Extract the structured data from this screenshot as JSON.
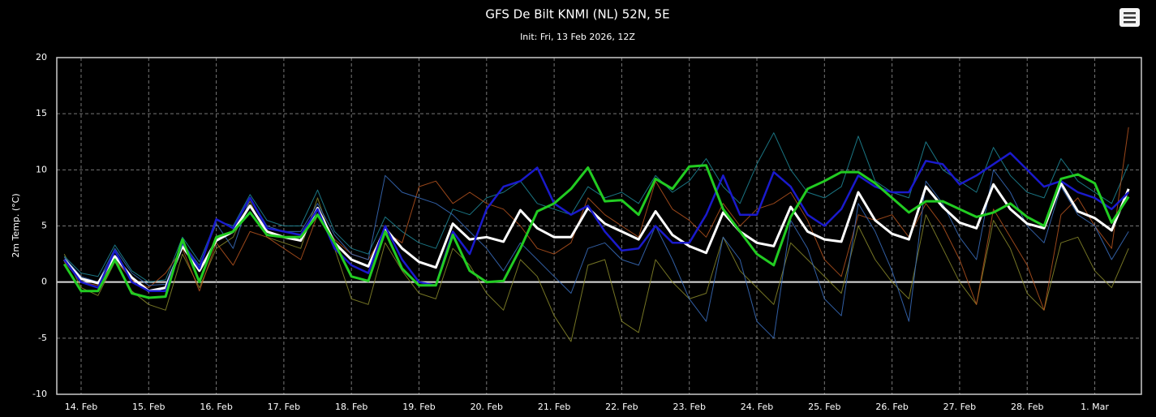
{
  "chart_data": {
    "type": "line",
    "title": "GFS De Bilt KNMI (NL) 52N, 5E",
    "subtitle": "Init: Fri, 13 Feb 2026, 12Z",
    "y_label": "2m Temp. (°C)",
    "grid": true,
    "xlim": [
      13.64,
      29.69
    ],
    "xticks": [
      {
        "value": 14,
        "label": "14. Feb"
      },
      {
        "value": 15,
        "label": "15. Feb"
      },
      {
        "value": 16,
        "label": "16. Feb"
      },
      {
        "value": 17,
        "label": "17. Feb"
      },
      {
        "value": 18,
        "label": "18. Feb"
      },
      {
        "value": 19,
        "label": "19. Feb"
      },
      {
        "value": 20,
        "label": "20. Feb"
      },
      {
        "value": 21,
        "label": "21. Feb"
      },
      {
        "value": 22,
        "label": "22. Feb"
      },
      {
        "value": 23,
        "label": "23. Feb"
      },
      {
        "value": 24,
        "label": "24. Feb"
      },
      {
        "value": 25,
        "label": "25. Feb"
      },
      {
        "value": 26,
        "label": "26. Feb"
      },
      {
        "value": 27,
        "label": "27. Feb"
      },
      {
        "value": 28,
        "label": "28. Feb"
      },
      {
        "value": 29,
        "label": "1. Mar"
      }
    ],
    "ylim": [
      -10,
      20
    ],
    "yticks": [
      -10,
      -5,
      0,
      5,
      10,
      15,
      20
    ],
    "x": [
      13.75,
      14,
      14.25,
      14.5,
      14.75,
      15,
      15.25,
      15.5,
      15.75,
      16,
      16.25,
      16.5,
      16.75,
      17,
      17.25,
      17.5,
      17.75,
      18,
      18.25,
      18.5,
      18.75,
      19,
      19.25,
      19.5,
      19.75,
      20,
      20.25,
      20.5,
      20.75,
      21,
      21.25,
      21.5,
      21.75,
      22,
      22.25,
      22.5,
      22.75,
      23,
      23.25,
      23.5,
      23.75,
      24,
      24.25,
      24.5,
      24.75,
      25,
      25.25,
      25.5,
      25.75,
      26,
      26.25,
      26.5,
      26.75,
      27,
      27.25,
      27.5,
      27.75,
      28,
      28.25,
      28.5,
      28.75,
      29,
      29.25,
      29.5
    ],
    "series": [
      {
        "color": "#8a8a2a",
        "width": 1,
        "values": [
          2.5,
          -0.5,
          -1.2,
          1.8,
          -0.8,
          -2.0,
          -2.5,
          2.5,
          -0.5,
          3.0,
          4.0,
          7.2,
          4.0,
          3.5,
          3.0,
          7.5,
          3.0,
          -1.5,
          -2.0,
          3.5,
          1.0,
          -1.0,
          -1.5,
          3.0,
          1.5,
          -1.0,
          -2.5,
          2.0,
          0.5,
          -3.0,
          -5.3,
          1.5,
          2.0,
          -3.5,
          -4.5,
          2.0,
          0.0,
          -1.5,
          -1.0,
          4.0,
          1.0,
          -0.5,
          -2.0,
          3.5,
          2.0,
          0.5,
          -1.0,
          5.0,
          2.0,
          0.0,
          -1.5,
          6.0,
          3.0,
          0.0,
          -2.0,
          5.5,
          3.0,
          -1.0,
          -2.5,
          3.5,
          4.0,
          1.0,
          -0.5,
          3.0
        ]
      },
      {
        "color": "#1e8a9a",
        "width": 1,
        "values": [
          2.3,
          0.8,
          0.5,
          3.3,
          1.0,
          0.0,
          0.2,
          4.0,
          1.8,
          5.5,
          5.0,
          7.8,
          5.5,
          5.0,
          5.0,
          8.2,
          4.5,
          3.0,
          2.5,
          5.8,
          4.5,
          3.5,
          3.0,
          6.5,
          6.0,
          7.5,
          8.0,
          9.0,
          7.0,
          6.5,
          6.0,
          8.5,
          7.5,
          8.0,
          7.0,
          9.5,
          8.0,
          9.0,
          11.0,
          8.5,
          7.0,
          10.5,
          13.3,
          10.0,
          8.0,
          7.5,
          8.5,
          13.0,
          9.0,
          8.0,
          7.5,
          12.5,
          10.0,
          9.0,
          8.0,
          12.0,
          9.5,
          8.0,
          7.5,
          11.0,
          9.0,
          8.0,
          7.0,
          10.5
        ]
      },
      {
        "color": "#b5541e",
        "width": 1,
        "values": [
          1.8,
          0.0,
          -0.3,
          2.0,
          0.2,
          -0.5,
          0.8,
          3.0,
          -0.8,
          3.5,
          1.5,
          4.5,
          4.0,
          3.0,
          2.0,
          6.0,
          3.8,
          2.5,
          2.0,
          4.5,
          3.5,
          8.5,
          9.0,
          7.0,
          8.0,
          7.0,
          6.5,
          5.0,
          3.0,
          2.5,
          3.5,
          7.5,
          6.0,
          5.0,
          4.0,
          9.0,
          6.5,
          5.5,
          4.0,
          7.0,
          5.0,
          6.5,
          7.0,
          8.0,
          5.5,
          2.0,
          0.5,
          6.0,
          5.5,
          6.0,
          4.0,
          7.0,
          5.0,
          2.0,
          -2.0,
          6.5,
          4.0,
          1.5,
          -2.5,
          6.0,
          7.5,
          5.0,
          3.0,
          13.8
        ]
      },
      {
        "color": "#3a6ec0",
        "width": 1,
        "values": [
          2.2,
          0.5,
          0.0,
          3.0,
          0.8,
          -0.3,
          -0.2,
          3.5,
          1.5,
          5.2,
          3.0,
          7.5,
          5.0,
          4.5,
          4.5,
          7.0,
          4.2,
          2.5,
          2.0,
          9.5,
          8.0,
          7.5,
          7.0,
          6.0,
          4.5,
          3.0,
          1.0,
          3.5,
          2.0,
          0.5,
          -1.0,
          3.0,
          3.5,
          2.0,
          1.5,
          5.0,
          2.0,
          -1.5,
          -3.5,
          4.0,
          2.0,
          -3.5,
          -5.0,
          5.5,
          3.0,
          -1.5,
          -3.0,
          7.0,
          4.5,
          1.0,
          -3.5,
          9.0,
          7.0,
          4.0,
          2.0,
          10.0,
          8.0,
          5.0,
          3.5,
          8.5,
          6.0,
          5.0,
          2.0,
          4.5
        ]
      },
      {
        "color": "#ffffff",
        "width": 3,
        "values": [
          2.0,
          0.3,
          -0.1,
          2.3,
          0.4,
          -0.8,
          -0.5,
          3.2,
          1.0,
          3.7,
          4.5,
          6.8,
          4.5,
          4.0,
          3.7,
          6.6,
          3.5,
          2.0,
          1.4,
          4.8,
          3.0,
          1.8,
          1.3,
          5.2,
          3.8,
          4.0,
          3.6,
          6.4,
          4.8,
          4.0,
          4.0,
          6.6,
          5.2,
          4.5,
          3.8,
          6.3,
          4.2,
          3.2,
          2.6,
          6.2,
          4.5,
          3.5,
          3.2,
          6.7,
          4.5,
          3.8,
          3.6,
          8.0,
          5.5,
          4.3,
          3.8,
          8.5,
          6.7,
          5.3,
          4.8,
          8.7,
          6.5,
          5.2,
          4.8,
          8.8,
          6.3,
          5.7,
          4.6,
          8.3
        ]
      },
      {
        "color": "#1a1acc",
        "width": 2.5,
        "values": [
          2.0,
          0.0,
          -0.5,
          2.8,
          0.0,
          -0.8,
          -0.8,
          3.5,
          1.2,
          5.6,
          4.8,
          7.5,
          4.8,
          4.5,
          4.2,
          6.5,
          3.0,
          1.5,
          0.8,
          5.0,
          2.0,
          0.0,
          -0.3,
          4.5,
          2.5,
          6.5,
          8.5,
          9.0,
          10.2,
          7.0,
          6.0,
          6.8,
          4.5,
          2.8,
          3.0,
          5.0,
          3.5,
          3.5,
          6.0,
          9.5,
          6.0,
          6.0,
          9.8,
          8.5,
          6.0,
          5.0,
          6.5,
          9.5,
          8.5,
          8.0,
          8.0,
          10.8,
          10.5,
          8.7,
          9.5,
          10.5,
          11.5,
          10.0,
          8.5,
          9.0,
          8.0,
          7.5,
          6.5,
          8.0
        ]
      },
      {
        "color": "#22cc22",
        "width": 3,
        "values": [
          1.6,
          -0.8,
          -0.8,
          2.0,
          -1.0,
          -1.4,
          -1.3,
          3.8,
          0.0,
          4.0,
          4.5,
          6.2,
          4.2,
          4.0,
          4.0,
          6.0,
          3.5,
          0.5,
          0.1,
          4.5,
          1.2,
          -0.3,
          -0.3,
          4.2,
          1.0,
          0.0,
          0.1,
          3.0,
          6.3,
          7.0,
          8.3,
          10.2,
          7.2,
          7.3,
          6.0,
          9.2,
          8.3,
          10.3,
          10.4,
          6.5,
          4.5,
          2.5,
          1.5,
          5.8,
          8.3,
          9.0,
          9.8,
          9.8,
          8.8,
          7.5,
          6.2,
          7.2,
          7.2,
          6.5,
          5.8,
          6.2,
          7.0,
          5.8,
          5.0,
          9.2,
          9.6,
          8.8,
          5.3,
          7.6
        ]
      }
    ]
  }
}
